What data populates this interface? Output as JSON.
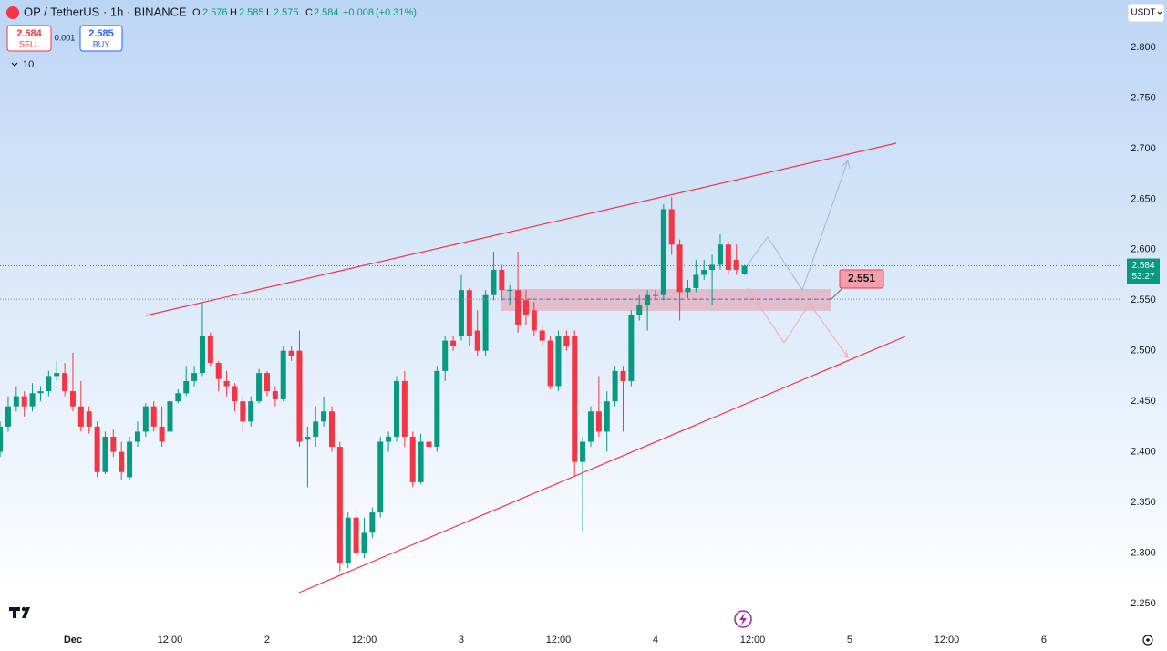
{
  "chart_data": {
    "type": "candlestick",
    "title": "OP / TetherUS · 1h · BINANCE",
    "ohlc_letters": [
      "O",
      "H",
      "L",
      "C"
    ],
    "change": "+0.008",
    "change_pct": "(+0.31%)",
    "sell_price": 2.584,
    "sell_label": "SELL",
    "spread": 0.001,
    "buy_price": 2.585,
    "buy_label": "BUY",
    "indicators_count": 10,
    "currency": "USDT",
    "countdown": "53:27",
    "target_level": 2.551,
    "up_color": "#089981",
    "down_color": "#f23645",
    "grid": false,
    "xlim": [
      -9.01,
      129.58
    ],
    "ylim": [
      2.2247,
      2.8469
    ],
    "xticks": [
      {
        "value": 0,
        "label": "Dec"
      },
      {
        "value": 12,
        "label": "12:00"
      },
      {
        "value": 24,
        "label": "2"
      },
      {
        "value": 36,
        "label": "12:00"
      },
      {
        "value": 48,
        "label": "3"
      },
      {
        "value": 60,
        "label": "12:00"
      },
      {
        "value": 72,
        "label": "4"
      },
      {
        "value": 84,
        "label": "12:00"
      },
      {
        "value": 96,
        "label": "5"
      },
      {
        "value": 108,
        "label": "12:00"
      },
      {
        "value": 120,
        "label": "6"
      }
    ],
    "yticks": [
      {
        "value": 2.25,
        "label": "2.250"
      },
      {
        "value": 2.3,
        "label": "2.300"
      },
      {
        "value": 2.35,
        "label": "2.350"
      },
      {
        "value": 2.4,
        "label": "2.400"
      },
      {
        "value": 2.45,
        "label": "2.450"
      },
      {
        "value": 2.5,
        "label": "2.500"
      },
      {
        "value": 2.55,
        "label": "2.550"
      },
      {
        "value": 2.6,
        "label": "2.600"
      },
      {
        "value": 2.65,
        "label": "2.650"
      },
      {
        "value": 2.7,
        "label": "2.700"
      },
      {
        "value": 2.75,
        "label": "2.750"
      },
      {
        "value": 2.8,
        "label": "2.800"
      }
    ],
    "x": [
      -9,
      -8,
      -7,
      -6,
      -5,
      -4,
      -3,
      -2,
      -1,
      0,
      1,
      2,
      3,
      4,
      5,
      6,
      7,
      8,
      9,
      10,
      11,
      12,
      13,
      14,
      15,
      16,
      17,
      18,
      19,
      20,
      21,
      22,
      23,
      24,
      25,
      26,
      27,
      28,
      29,
      30,
      31,
      32,
      33,
      34,
      35,
      36,
      37,
      38,
      39,
      40,
      41,
      42,
      43,
      44,
      45,
      46,
      47,
      48,
      49,
      50,
      51,
      52,
      53,
      54,
      55,
      56,
      57,
      58,
      59,
      60,
      61,
      62,
      63,
      64,
      65,
      66,
      67,
      68,
      69,
      70,
      71,
      72,
      73,
      74,
      75,
      76,
      77,
      78,
      79,
      80,
      81,
      82,
      83
    ],
    "open": [
      2.4,
      2.425,
      2.445,
      2.455,
      2.445,
      2.458,
      2.46,
      2.475,
      2.478,
      2.46,
      2.445,
      2.44,
      2.425,
      2.38,
      2.415,
      2.4,
      2.375,
      2.41,
      2.42,
      2.445,
      2.425,
      2.42,
      2.45,
      2.458,
      2.47,
      2.478,
      2.515,
      2.488,
      2.47,
      2.465,
      2.45,
      2.43,
      2.45,
      2.478,
      2.46,
      2.452,
      2.5,
      2.5,
      2.412,
      2.415,
      2.43,
      2.44,
      2.405,
      2.29,
      2.335,
      2.3,
      2.32,
      2.34,
      2.41,
      2.415,
      2.47,
      2.415,
      2.37,
      2.41,
      2.405,
      2.48,
      2.51,
      2.515,
      2.56,
      2.52,
      2.5,
      2.555,
      2.58,
      2.56,
      2.56,
      2.55,
      2.54,
      2.52,
      2.51,
      2.465,
      2.515,
      2.515,
      2.39,
      2.41,
      2.44,
      2.42,
      2.45,
      2.48,
      2.47,
      2.535,
      2.545,
      2.555,
      2.555,
      2.64,
      2.605,
      2.558,
      2.562,
      2.575,
      2.58,
      2.585,
      2.605,
      2.59,
      2.576
    ],
    "high": [
      2.43,
      2.455,
      2.465,
      2.46,
      2.468,
      2.465,
      2.48,
      2.49,
      2.488,
      2.498,
      2.47,
      2.445,
      2.43,
      2.42,
      2.422,
      2.41,
      2.415,
      2.43,
      2.448,
      2.45,
      2.445,
      2.455,
      2.462,
      2.485,
      2.485,
      2.548,
      2.518,
      2.49,
      2.48,
      2.468,
      2.455,
      2.455,
      2.482,
      2.48,
      2.465,
      2.505,
      2.505,
      2.52,
      2.425,
      2.445,
      2.455,
      2.445,
      2.41,
      2.34,
      2.345,
      2.335,
      2.345,
      2.415,
      2.42,
      2.475,
      2.48,
      2.42,
      2.418,
      2.415,
      2.485,
      2.515,
      2.515,
      2.575,
      2.562,
      2.54,
      2.56,
      2.598,
      2.585,
      2.565,
      2.598,
      2.56,
      2.548,
      2.525,
      2.515,
      2.52,
      2.52,
      2.52,
      2.415,
      2.445,
      2.475,
      2.46,
      2.485,
      2.485,
      2.54,
      2.555,
      2.56,
      2.56,
      2.645,
      2.652,
      2.61,
      2.57,
      2.59,
      2.59,
      2.595,
      2.615,
      2.608,
      2.605,
      2.585
    ],
    "low": [
      2.395,
      2.42,
      2.44,
      2.435,
      2.44,
      2.45,
      2.455,
      2.47,
      2.455,
      2.44,
      2.42,
      2.418,
      2.375,
      2.378,
      2.395,
      2.372,
      2.372,
      2.405,
      2.415,
      2.42,
      2.405,
      2.42,
      2.448,
      2.455,
      2.465,
      2.475,
      2.485,
      2.46,
      2.455,
      2.44,
      2.42,
      2.425,
      2.448,
      2.455,
      2.445,
      2.45,
      2.49,
      2.405,
      2.365,
      2.405,
      2.425,
      2.4,
      2.282,
      2.285,
      2.295,
      2.295,
      2.315,
      2.335,
      2.4,
      2.41,
      2.405,
      2.365,
      2.368,
      2.398,
      2.4,
      2.47,
      2.5,
      2.51,
      2.505,
      2.495,
      2.495,
      2.55,
      2.55,
      2.545,
      2.518,
      2.525,
      2.515,
      2.505,
      2.462,
      2.46,
      2.5,
      2.375,
      2.32,
      2.405,
      2.415,
      2.4,
      2.445,
      2.42,
      2.465,
      2.53,
      2.52,
      2.55,
      2.55,
      2.595,
      2.53,
      2.552,
      2.558,
      2.57,
      2.545,
      2.58,
      2.575,
      2.575,
      2.575
    ],
    "close": [
      2.425,
      2.445,
      2.455,
      2.445,
      2.458,
      2.46,
      2.475,
      2.478,
      2.46,
      2.445,
      2.425,
      2.425,
      2.38,
      2.415,
      2.4,
      2.38,
      2.41,
      2.42,
      2.445,
      2.425,
      2.41,
      2.45,
      2.458,
      2.47,
      2.478,
      2.515,
      2.488,
      2.472,
      2.465,
      2.45,
      2.43,
      2.45,
      2.478,
      2.46,
      2.452,
      2.5,
      2.495,
      2.41,
      2.415,
      2.43,
      2.44,
      2.405,
      2.29,
      2.335,
      2.3,
      2.32,
      2.34,
      2.41,
      2.415,
      2.47,
      2.415,
      2.37,
      2.41,
      2.405,
      2.48,
      2.51,
      2.505,
      2.56,
      2.515,
      2.5,
      2.555,
      2.58,
      2.56,
      2.56,
      2.525,
      2.535,
      2.52,
      2.51,
      2.465,
      2.515,
      2.505,
      2.39,
      2.41,
      2.44,
      2.42,
      2.45,
      2.48,
      2.47,
      2.535,
      2.545,
      2.555,
      2.555,
      2.64,
      2.605,
      2.558,
      2.562,
      2.575,
      2.58,
      2.585,
      2.605,
      2.58,
      2.58,
      2.584
    ]
  }
}
